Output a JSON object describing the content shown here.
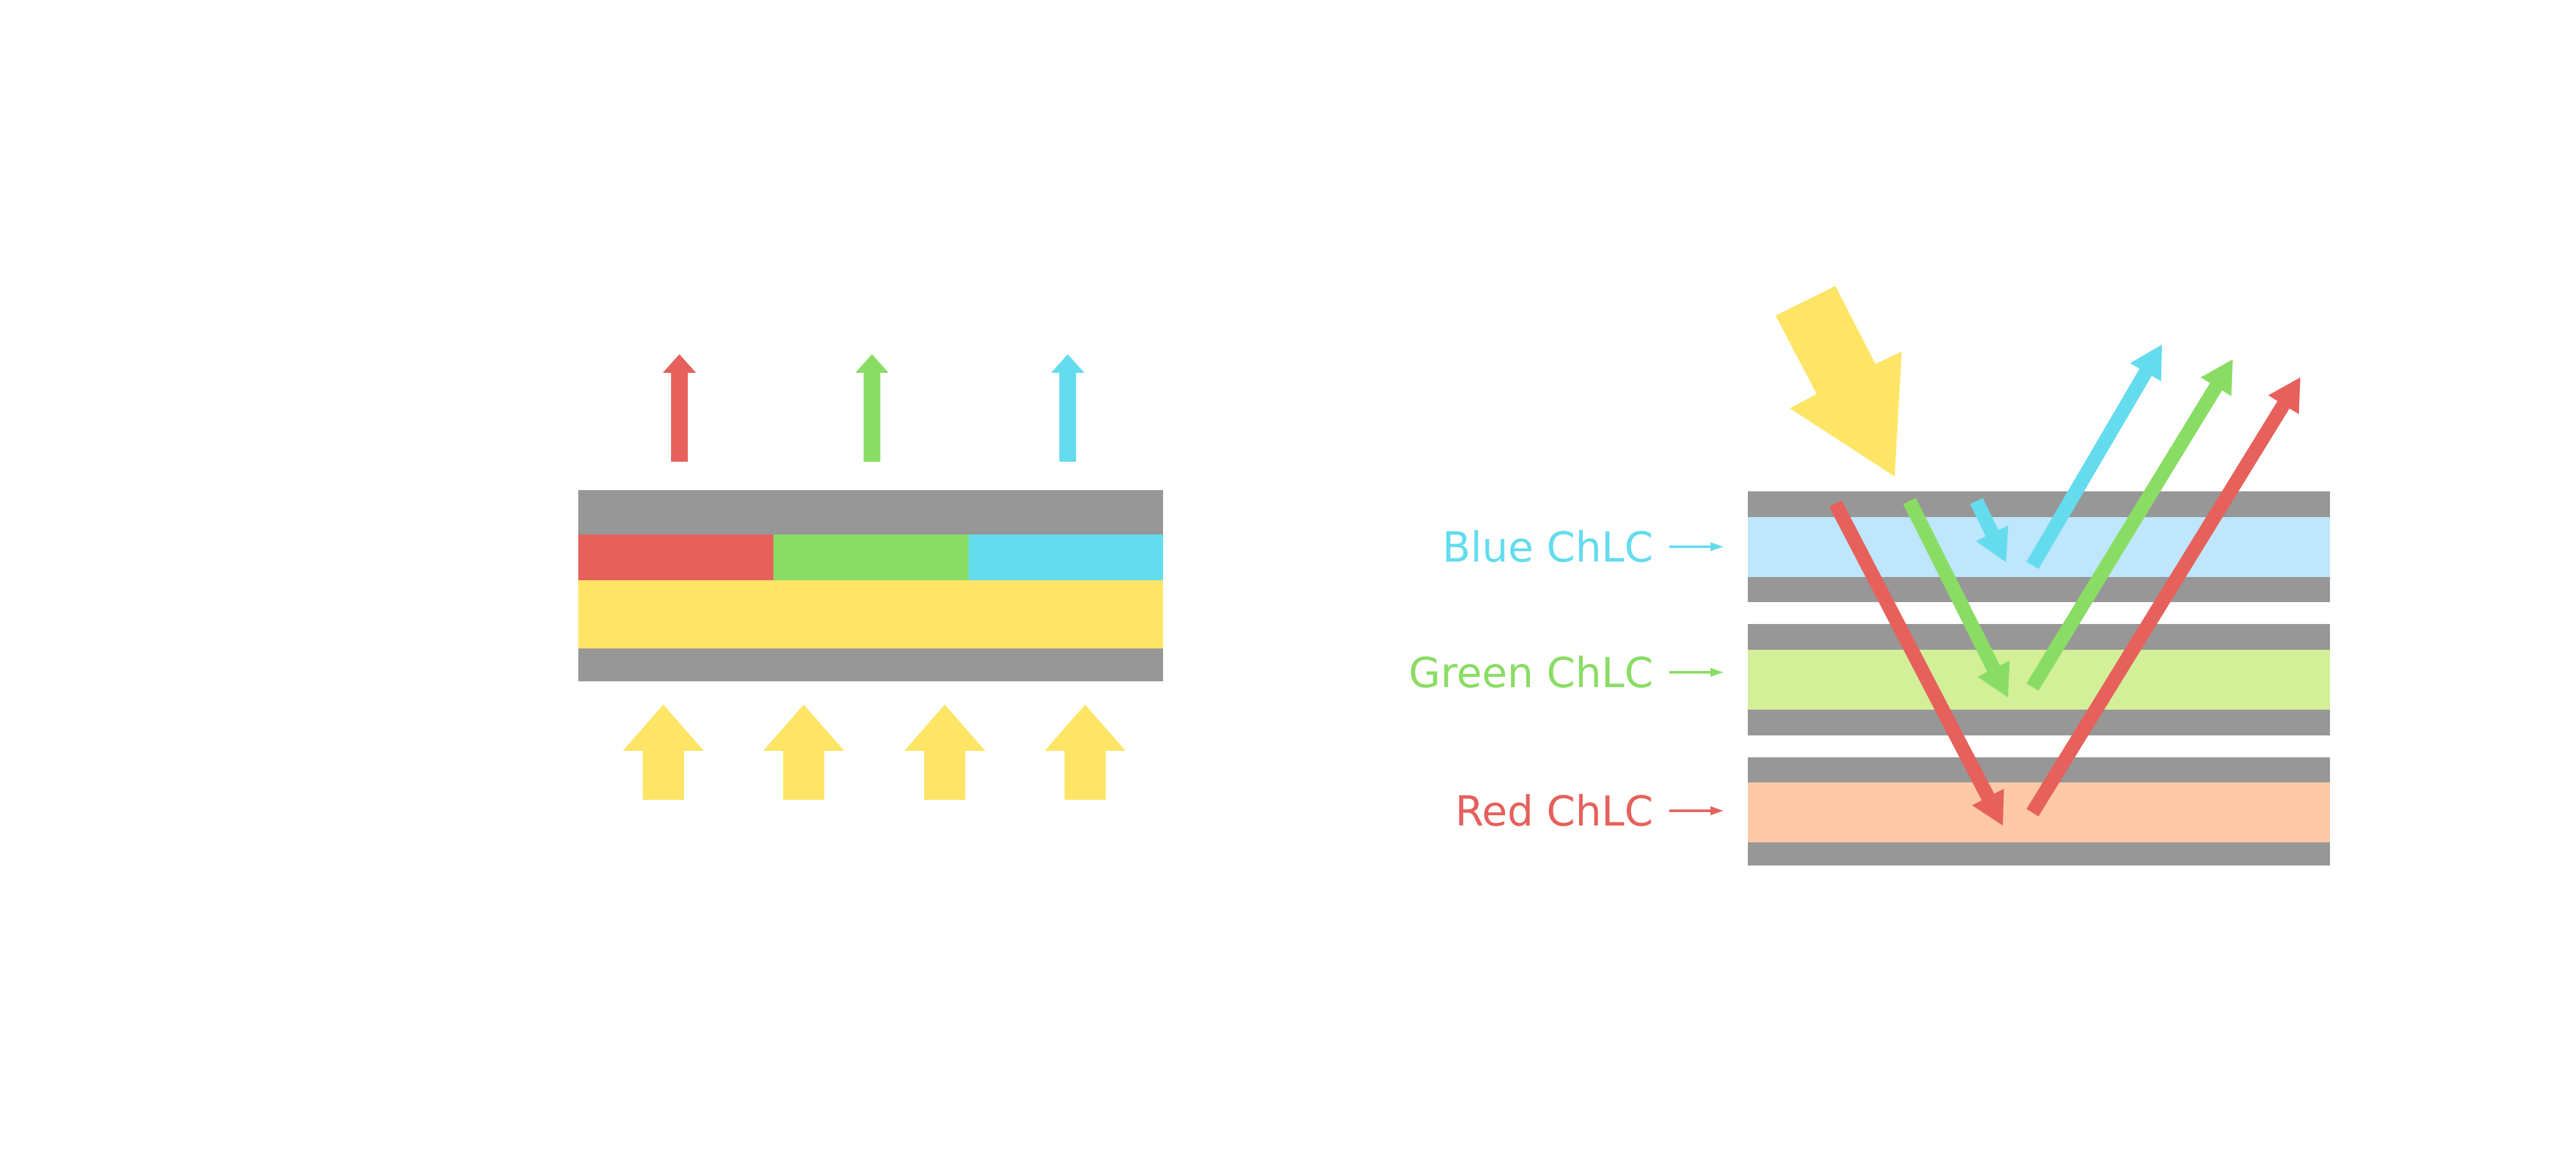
{
  "colors": {
    "red": "#E6615C",
    "green": "#8ADD64",
    "blue": "#64DCEE",
    "yellow": "#FEE566",
    "gray": "#979797",
    "blue_layer": "#BEE6FC",
    "green_layer": "#D3EF98",
    "red_layer": "#FEC9A8"
  },
  "labels": {
    "blue": "Blue ChLC",
    "green": "Green ChLC",
    "red": "Red ChLC"
  }
}
